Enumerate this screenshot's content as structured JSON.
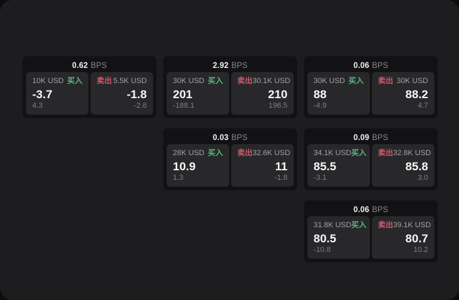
{
  "theme": {
    "surface_color": "#1d1d1f",
    "card_color": "#121214",
    "panel_color": "#28282a",
    "buy_color": "#58b97e",
    "sell_color": "#d4586a"
  },
  "labels": {
    "bps_unit": "BPS",
    "buy": "买入",
    "sell": "卖出"
  },
  "cards": [
    {
      "col": 1,
      "row": 1,
      "bps": "0.62",
      "buy": {
        "size": "10K USD",
        "price": "-3.7",
        "delta": "4.3"
      },
      "sell": {
        "size": "5.5K USD",
        "price": "-1.8",
        "delta": "-2.6"
      }
    },
    {
      "col": 2,
      "row": 1,
      "bps": "2.92",
      "buy": {
        "size": "30K USD",
        "price": "201",
        "delta": "-188.1"
      },
      "sell": {
        "size": "30.1K USD",
        "price": "210",
        "delta": "196.5"
      }
    },
    {
      "col": 3,
      "row": 1,
      "bps": "0.06",
      "buy": {
        "size": "30K USD",
        "price": "88",
        "delta": "-4.9"
      },
      "sell": {
        "size": "30K USD",
        "price": "88.2",
        "delta": "4.7"
      }
    },
    {
      "col": 2,
      "row": 2,
      "bps": "0.03",
      "buy": {
        "size": "28K USD",
        "price": "10.9",
        "delta": "1.3"
      },
      "sell": {
        "size": "32.6K USD",
        "price": "11",
        "delta": "-1.8"
      }
    },
    {
      "col": 3,
      "row": 2,
      "bps": "0.09",
      "buy": {
        "size": "34.1K USD",
        "price": "85.5",
        "delta": "-3.1"
      },
      "sell": {
        "size": "32.8K USD",
        "price": "85.8",
        "delta": "3.0"
      }
    },
    {
      "col": 3,
      "row": 3,
      "bps": "0.06",
      "buy": {
        "size": "31.8K USD",
        "price": "80.5",
        "delta": "-10.8"
      },
      "sell": {
        "size": "39.1K USD",
        "price": "80.7",
        "delta": "10.2"
      }
    }
  ]
}
